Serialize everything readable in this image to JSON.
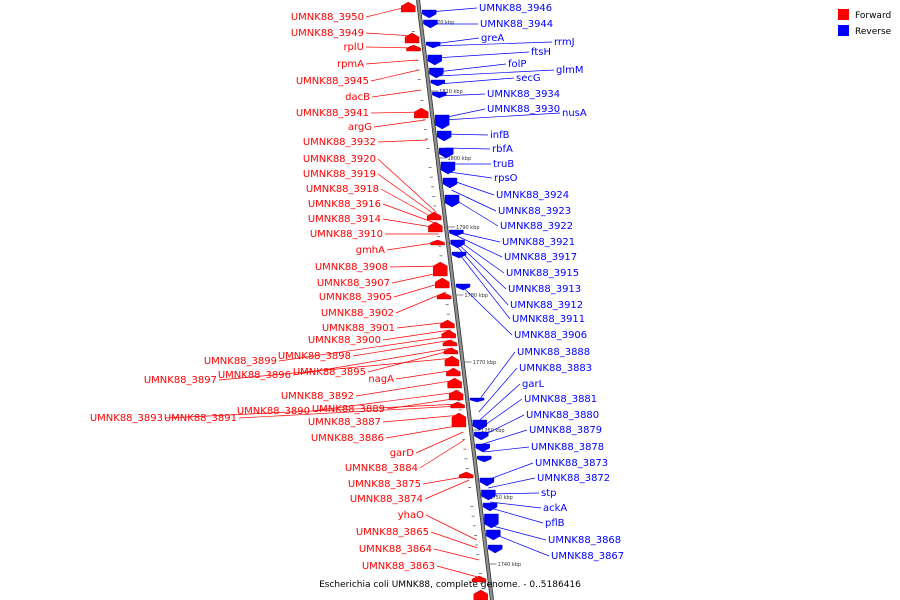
{
  "caption": "Escherichia coli UMNK88, complete genome. - 0..5186416",
  "colors": {
    "forward": "#ff0000",
    "reverse": "#0000ff",
    "axis": "#909090",
    "axis_edge": "#333333"
  },
  "legend": {
    "forward": "Forward",
    "reverse": "Reverse"
  },
  "ticks": [
    "1820 kbp",
    "1810 kbp",
    "1800 kbp",
    "1790 kbp",
    "1780 kbp",
    "1770 kbp",
    "1760 kbp",
    "1750 kbp",
    "1740 kbp"
  ],
  "forward_labels": [
    "UMNK88_3950",
    "UMNK88_3949",
    "rplU",
    "rpmA",
    "UMNK88_3945",
    "dacB",
    "UMNK88_3941",
    "argG",
    "UMNK88_3932",
    "UMNK88_3920",
    "UMNK88_3919",
    "UMNK88_3918",
    "UMNK88_3916",
    "UMNK88_3914",
    "UMNK88_3910",
    "gmhA",
    "UMNK88_3908",
    "UMNK88_3907",
    "UMNK88_3905",
    "UMNK88_3902",
    "UMNK88_3901",
    "UMNK88_3900",
    "UMNK88_3899",
    "UMNK88_3898",
    "UMNK88_3896",
    "UMNK88_3895",
    "UMNK88_3897",
    "nagA",
    "UMNK88_3892",
    "UMNK88_3890",
    "UMNK88_3889",
    "UMNK88_3893",
    "UMNK88_3891",
    "UMNK88_3887",
    "UMNK88_3886",
    "garD",
    "UMNK88_3884",
    "UMNK88_3875",
    "UMNK88_3874",
    "yhaO",
    "UMNK88_3865",
    "UMNK88_3864",
    "UMNK88_3863"
  ],
  "reverse_labels": [
    "UMNK88_3946",
    "UMNK88_3944",
    "greA",
    "rrmJ",
    "ftsH",
    "folP",
    "glmM",
    "secG",
    "UMNK88_3934",
    "UMNK88_3930",
    "nusA",
    "infB",
    "rbfA",
    "truB",
    "rpsO",
    "UMNK88_3924",
    "UMNK88_3923",
    "UMNK88_3922",
    "UMNK88_3921",
    "UMNK88_3917",
    "UMNK88_3915",
    "UMNK88_3913",
    "UMNK88_3912",
    "UMNK88_3911",
    "UMNK88_3906",
    "UMNK88_3888",
    "UMNK88_3883",
    "garL",
    "UMNK88_3881",
    "UMNK88_3880",
    "UMNK88_3879",
    "UMNK88_3878",
    "UMNK88_3873",
    "UMNK88_3872",
    "stp",
    "ackA",
    "pflB",
    "UMNK88_3868",
    "UMNK88_3867"
  ]
}
